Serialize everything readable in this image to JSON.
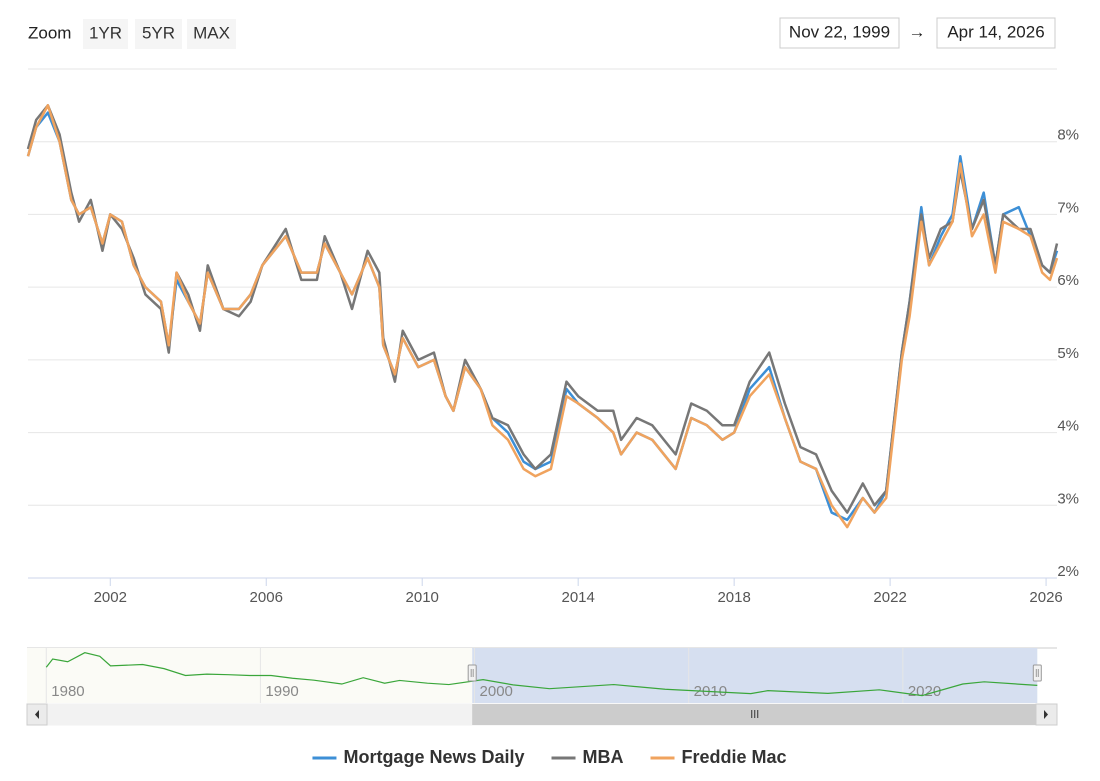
{
  "zoom_label": "Zoom",
  "zoom_buttons": [
    "1YR",
    "5YR",
    "MAX"
  ],
  "range_from": "Nov 22, 1999",
  "range_arrow": "→",
  "range_to": "Apr 14, 2026",
  "chart_data": {
    "type": "line",
    "x": [
      1999.89,
      2000.1,
      2000.4,
      2000.7,
      2001.0,
      2001.2,
      2001.5,
      2001.8,
      2002.0,
      2002.3,
      2002.6,
      2002.9,
      2003.3,
      2003.5,
      2003.7,
      2004.0,
      2004.3,
      2004.5,
      2004.9,
      2005.3,
      2005.6,
      2005.9,
      2006.5,
      2006.9,
      2007.3,
      2007.5,
      2007.9,
      2008.2,
      2008.6,
      2008.9,
      2009.0,
      2009.3,
      2009.5,
      2009.9,
      2010.3,
      2010.6,
      2010.8,
      2011.1,
      2011.5,
      2011.8,
      2012.2,
      2012.6,
      2012.9,
      2013.3,
      2013.7,
      2014.0,
      2014.5,
      2014.9,
      2015.1,
      2015.5,
      2015.9,
      2016.5,
      2016.9,
      2017.3,
      2017.7,
      2018.0,
      2018.4,
      2018.9,
      2019.3,
      2019.7,
      2020.1,
      2020.5,
      2020.9,
      2021.3,
      2021.6,
      2021.9,
      2022.3,
      2022.5,
      2022.8,
      2023.0,
      2023.3,
      2023.6,
      2023.8,
      2024.1,
      2024.4,
      2024.7,
      2024.9,
      2025.3,
      2025.6,
      2025.9,
      2026.1,
      2026.28
    ],
    "series": [
      {
        "name": "Mortgage News Daily",
        "color": "#3d8fd6",
        "values": [
          7.8,
          8.2,
          8.4,
          8.0,
          7.2,
          7.0,
          7.1,
          6.6,
          7.0,
          6.9,
          6.3,
          6.0,
          5.8,
          5.2,
          6.1,
          5.8,
          5.5,
          6.2,
          5.7,
          5.7,
          5.9,
          6.3,
          6.7,
          6.2,
          6.2,
          6.6,
          6.2,
          5.9,
          6.4,
          6.0,
          5.2,
          4.8,
          5.3,
          4.9,
          5.0,
          4.5,
          4.3,
          4.9,
          4.6,
          4.2,
          4.0,
          3.6,
          3.5,
          3.6,
          4.6,
          4.4,
          4.2,
          4.0,
          3.7,
          4.0,
          3.9,
          3.5,
          4.2,
          4.1,
          3.9,
          4.0,
          4.6,
          4.9,
          4.2,
          3.6,
          3.5,
          2.9,
          2.8,
          3.1,
          2.9,
          3.2,
          5.1,
          5.8,
          7.1,
          6.3,
          6.7,
          7.0,
          7.8,
          6.8,
          7.3,
          6.3,
          7.0,
          7.1,
          6.7,
          6.3,
          6.2,
          6.5
        ]
      },
      {
        "name": "MBA",
        "color": "#777777",
        "values": [
          7.9,
          8.3,
          8.5,
          8.1,
          7.3,
          6.9,
          7.2,
          6.5,
          7.0,
          6.8,
          6.4,
          5.9,
          5.7,
          5.1,
          6.2,
          5.9,
          5.4,
          6.3,
          5.7,
          5.6,
          5.8,
          6.3,
          6.8,
          6.1,
          6.1,
          6.7,
          6.2,
          5.7,
          6.5,
          6.2,
          5.3,
          4.7,
          5.4,
          5.0,
          5.1,
          4.5,
          4.3,
          5.0,
          4.6,
          4.2,
          4.1,
          3.7,
          3.5,
          3.7,
          4.7,
          4.5,
          4.3,
          4.3,
          3.9,
          4.2,
          4.1,
          3.7,
          4.4,
          4.3,
          4.1,
          4.1,
          4.7,
          5.1,
          4.4,
          3.8,
          3.7,
          3.2,
          2.9,
          3.3,
          3.0,
          3.2,
          5.1,
          5.8,
          7.0,
          6.4,
          6.8,
          6.9,
          7.6,
          6.8,
          7.2,
          6.3,
          7.0,
          6.8,
          6.8,
          6.3,
          6.2,
          6.6
        ]
      },
      {
        "name": "Freddie Mac",
        "color": "#f0a35e",
        "values": [
          7.8,
          8.2,
          8.5,
          8.0,
          7.2,
          7.0,
          7.1,
          6.6,
          7.0,
          6.9,
          6.3,
          6.0,
          5.8,
          5.2,
          6.2,
          5.8,
          5.5,
          6.2,
          5.7,
          5.7,
          5.9,
          6.3,
          6.7,
          6.2,
          6.2,
          6.6,
          6.2,
          5.9,
          6.4,
          6.0,
          5.2,
          4.8,
          5.3,
          4.9,
          5.0,
          4.5,
          4.3,
          4.9,
          4.6,
          4.1,
          3.9,
          3.5,
          3.4,
          3.5,
          4.5,
          4.4,
          4.2,
          4.0,
          3.7,
          4.0,
          3.9,
          3.5,
          4.2,
          4.1,
          3.9,
          4.0,
          4.5,
          4.8,
          4.2,
          3.6,
          3.5,
          3.0,
          2.7,
          3.1,
          2.9,
          3.1,
          5.0,
          5.6,
          6.9,
          6.3,
          6.6,
          6.9,
          7.7,
          6.7,
          7.0,
          6.2,
          6.9,
          6.8,
          6.7,
          6.2,
          6.1,
          6.4
        ]
      }
    ],
    "xlim": [
      1999.89,
      2026.28
    ],
    "xticks": [
      2002,
      2006,
      2010,
      2014,
      2018,
      2022,
      2026
    ],
    "ylim": [
      2,
      9
    ],
    "yticks": [
      {
        "value": 2,
        "label": "2%"
      },
      {
        "value": 3,
        "label": "3%"
      },
      {
        "value": 4,
        "label": "4%"
      },
      {
        "value": 5,
        "label": "5%"
      },
      {
        "value": 6,
        "label": "6%"
      },
      {
        "value": 7,
        "label": "7%"
      },
      {
        "value": 8,
        "label": "8%"
      }
    ],
    "grid": true,
    "legend": "bottom",
    "navigator": {
      "color": "#3aa63a",
      "x": [
        1980.0,
        1980.3,
        1981.0,
        1981.8,
        1982.5,
        1983.0,
        1984.5,
        1985.5,
        1986.5,
        1987.5,
        1988.5,
        1989.5,
        1990.5,
        1991.5,
        1992.5,
        1993.8,
        1994.8,
        1995.8,
        1996.5,
        1997.8,
        1998.8,
        2000.4,
        2001.8,
        2003.5,
        2006.5,
        2008.9,
        2012.9,
        2013.7,
        2016.5,
        2018.9,
        2020.9,
        2022.8,
        2023.8,
        2026.28
      ],
      "values": [
        13,
        16,
        15,
        18.3,
        17,
        13.5,
        14,
        12.5,
        10,
        10.5,
        10.3,
        10,
        10,
        9,
        8.3,
        6.9,
        9.2,
        7.2,
        8.2,
        7.2,
        6.7,
        8.5,
        6.6,
        5.2,
        6.7,
        5.0,
        3.4,
        4.5,
        3.5,
        4.8,
        2.7,
        6.9,
        7.7,
        6.4
      ],
      "xlim": [
        1979.1,
        2027.2
      ],
      "ylim": [
        0,
        20
      ],
      "xticks": [
        1980,
        1990,
        2000,
        2010,
        2020
      ]
    }
  }
}
